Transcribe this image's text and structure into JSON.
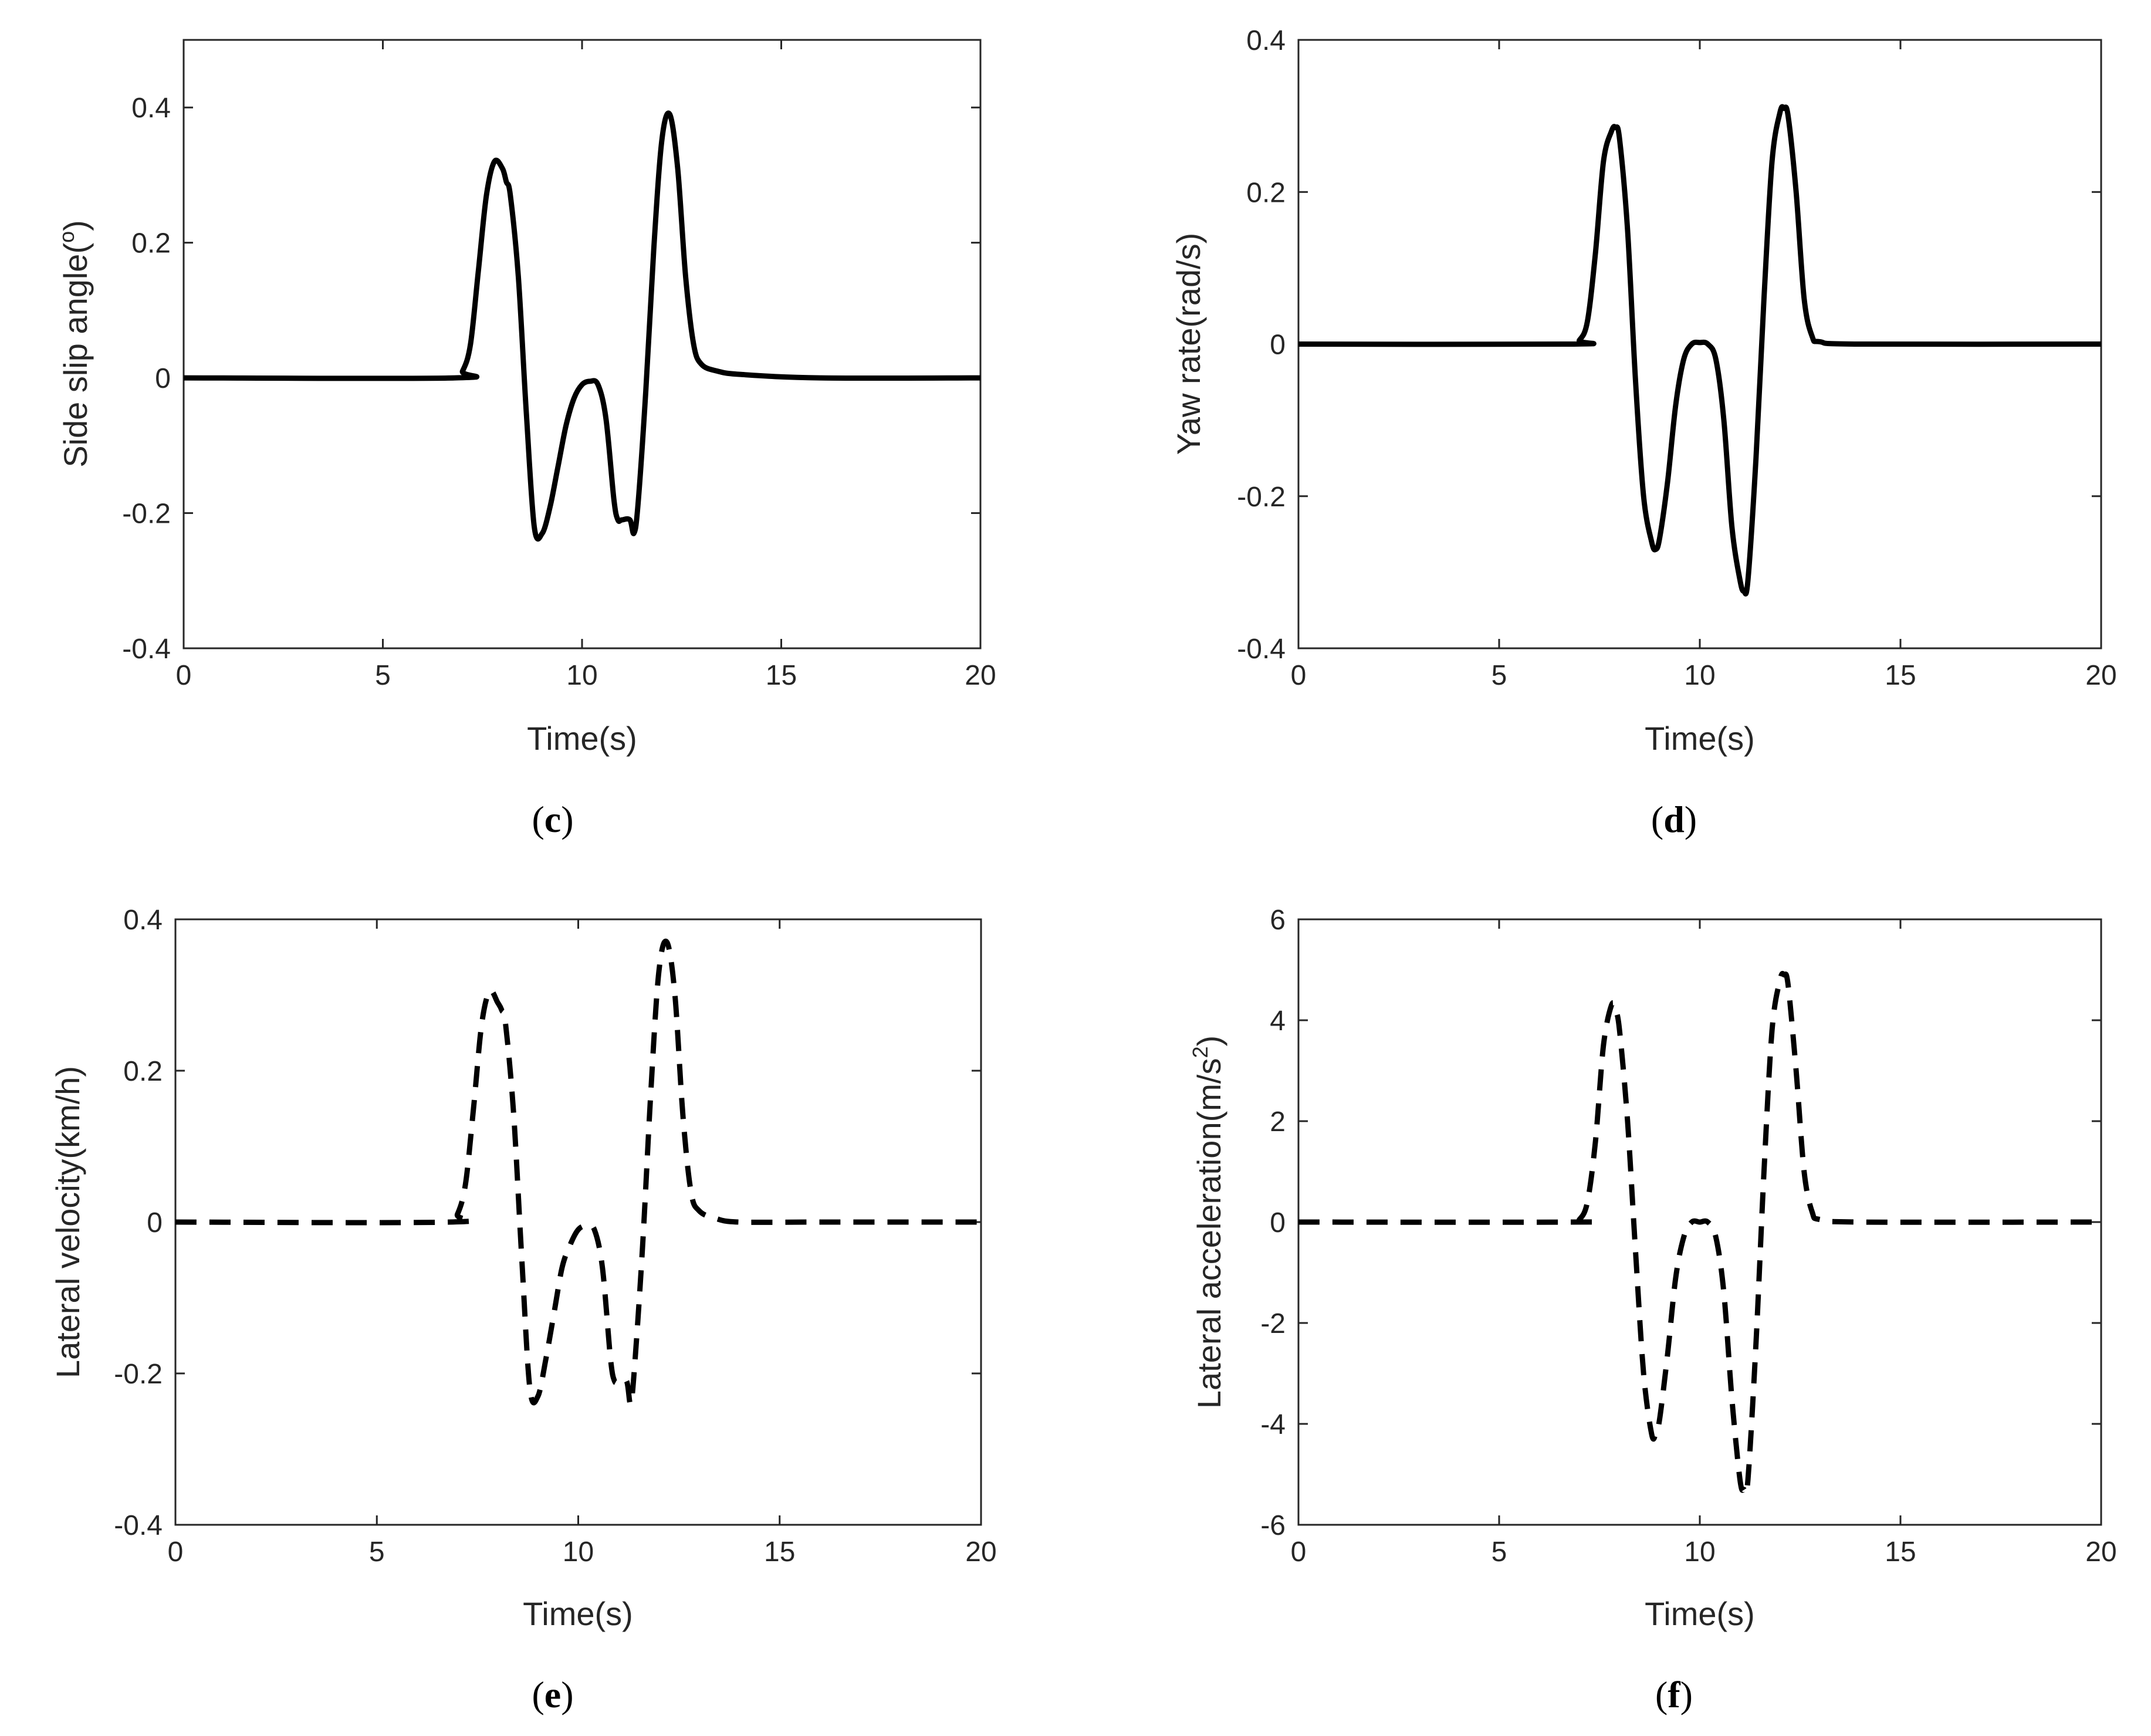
{
  "chart_data": [
    {
      "id": "c",
      "type": "line",
      "panel_label": "c",
      "xlabel": "Time(s)",
      "ylabel": "Side slip angle(",
      "ylabel_sup": "o",
      "ylabel_tail": ")",
      "xlim": [
        0,
        20
      ],
      "ylim": [
        -0.4,
        0.5
      ],
      "xticks": [
        0,
        5,
        10,
        15,
        20
      ],
      "xtick_labels": [
        "0",
        "5",
        "10",
        "15",
        "20"
      ],
      "yticks": [
        -0.4,
        -0.2,
        0,
        0.2,
        0.4
      ],
      "ytick_labels": [
        "-0.4",
        "-0.2",
        "0",
        "0.2",
        "0.4"
      ],
      "line_style": "solid",
      "series": [
        {
          "x": [
            0,
            6.8,
            7.0,
            7.2,
            7.4,
            7.6,
            7.8,
            8.0,
            8.1,
            8.2,
            8.4,
            8.6,
            8.8,
            9.0,
            9.2,
            9.4,
            9.6,
            9.8,
            10.0,
            10.2,
            10.4,
            10.6,
            10.8,
            10.9,
            11.0,
            11.2,
            11.3,
            11.4,
            11.6,
            11.8,
            12.0,
            12.2,
            12.4,
            12.6,
            12.8,
            13.0,
            13.4,
            14.0,
            16.0,
            20.0
          ],
          "y": [
            0,
            0,
            0.01,
            0.05,
            0.16,
            0.27,
            0.32,
            0.31,
            0.29,
            0.27,
            0.15,
            -0.05,
            -0.22,
            -0.23,
            -0.19,
            -0.13,
            -0.07,
            -0.03,
            -0.01,
            -0.005,
            -0.01,
            -0.06,
            -0.18,
            -0.21,
            -0.21,
            -0.21,
            -0.23,
            -0.19,
            -0.02,
            0.19,
            0.35,
            0.39,
            0.31,
            0.15,
            0.05,
            0.02,
            0.01,
            0.005,
            0,
            0
          ]
        }
      ]
    },
    {
      "id": "d",
      "type": "line",
      "panel_label": "d",
      "xlabel": "Time(s)",
      "ylabel": "Yaw rate(rad/s)",
      "ylabel_sup": "",
      "ylabel_tail": "",
      "xlim": [
        0,
        20
      ],
      "ylim": [
        -0.4,
        0.4
      ],
      "xticks": [
        0,
        5,
        10,
        15,
        20
      ],
      "xtick_labels": [
        "0",
        "5",
        "10",
        "15",
        "20"
      ],
      "yticks": [
        -0.4,
        -0.2,
        0,
        0.2,
        0.4
      ],
      "ytick_labels": [
        "-0.4",
        "-0.2",
        "0",
        "0.2",
        "0.4"
      ],
      "line_style": "solid",
      "series": [
        {
          "x": [
            0,
            6.8,
            7.0,
            7.2,
            7.4,
            7.6,
            7.8,
            7.9,
            8.0,
            8.2,
            8.4,
            8.6,
            8.8,
            8.9,
            9.0,
            9.2,
            9.4,
            9.6,
            9.8,
            10.0,
            10.2,
            10.4,
            10.6,
            10.8,
            11.0,
            11.1,
            11.2,
            11.4,
            11.6,
            11.8,
            12.0,
            12.1,
            12.2,
            12.4,
            12.6,
            12.8,
            13.0,
            14.0,
            20.0
          ],
          "y": [
            0,
            0,
            0.005,
            0.03,
            0.12,
            0.24,
            0.28,
            0.285,
            0.27,
            0.15,
            -0.05,
            -0.2,
            -0.26,
            -0.27,
            -0.255,
            -0.18,
            -0.08,
            -0.02,
            0.0,
            0.002,
            0.0,
            -0.02,
            -0.1,
            -0.24,
            -0.31,
            -0.325,
            -0.31,
            -0.15,
            0.06,
            0.24,
            0.305,
            0.31,
            0.3,
            0.2,
            0.06,
            0.01,
            0.003,
            0,
            0
          ]
        }
      ]
    },
    {
      "id": "e",
      "type": "line",
      "panel_label": "e",
      "xlabel": "Time(s)",
      "ylabel": "Lateral velocity(km/h)",
      "ylabel_sup": "",
      "ylabel_tail": "",
      "xlim": [
        0,
        20
      ],
      "ylim": [
        -0.4,
        0.4
      ],
      "xticks": [
        0,
        5,
        10,
        15,
        20
      ],
      "xtick_labels": [
        "0",
        "5",
        "10",
        "15",
        "20"
      ],
      "yticks": [
        -0.4,
        -0.2,
        0,
        0.2,
        0.4
      ],
      "ytick_labels": [
        "-0.4",
        "-0.2",
        "0",
        "0.2",
        "0.4"
      ],
      "line_style": "dashed",
      "series": [
        {
          "x": [
            0,
            6.8,
            7.0,
            7.2,
            7.4,
            7.6,
            7.8,
            8.0,
            8.1,
            8.2,
            8.4,
            8.6,
            8.8,
            9.0,
            9.2,
            9.4,
            9.6,
            9.8,
            10.0,
            10.2,
            10.4,
            10.6,
            10.8,
            10.9,
            11.0,
            11.2,
            11.3,
            11.4,
            11.6,
            11.8,
            12.0,
            12.2,
            12.4,
            12.6,
            12.8,
            13.0,
            13.4,
            14.0,
            16.0,
            20.0
          ],
          "y": [
            0,
            0,
            0.01,
            0.05,
            0.15,
            0.26,
            0.305,
            0.29,
            0.28,
            0.26,
            0.14,
            -0.05,
            -0.22,
            -0.23,
            -0.18,
            -0.12,
            -0.06,
            -0.03,
            -0.01,
            -0.005,
            -0.01,
            -0.06,
            -0.18,
            -0.21,
            -0.21,
            -0.21,
            -0.24,
            -0.19,
            -0.03,
            0.17,
            0.33,
            0.37,
            0.3,
            0.14,
            0.04,
            0.015,
            0.005,
            0,
            0,
            0
          ]
        }
      ]
    },
    {
      "id": "f",
      "type": "line",
      "panel_label": "f",
      "xlabel": "Time(s)",
      "ylabel": "Lateral acceleration(m/s",
      "ylabel_sup": "2",
      "ylabel_tail": ")",
      "xlim": [
        0,
        20
      ],
      "ylim": [
        -6,
        6
      ],
      "xticks": [
        0,
        5,
        10,
        15,
        20
      ],
      "xtick_labels": [
        "0",
        "5",
        "10",
        "15",
        "20"
      ],
      "yticks": [
        -6,
        -4,
        -2,
        0,
        2,
        4,
        6
      ],
      "ytick_labels": [
        "-6",
        "-4",
        "-2",
        "0",
        "2",
        "4",
        "6"
      ],
      "line_style": "dashed",
      "series": [
        {
          "x": [
            0,
            6.8,
            7.0,
            7.2,
            7.4,
            7.6,
            7.8,
            7.9,
            8.0,
            8.2,
            8.4,
            8.6,
            8.8,
            8.9,
            9.0,
            9.2,
            9.4,
            9.6,
            9.8,
            10.0,
            10.2,
            10.4,
            10.6,
            10.8,
            11.0,
            11.1,
            11.2,
            11.4,
            11.6,
            11.8,
            12.0,
            12.1,
            12.2,
            12.4,
            12.6,
            12.8,
            13.0,
            14.0,
            20.0
          ],
          "y": [
            0,
            0,
            0.05,
            0.4,
            1.6,
            3.5,
            4.3,
            4.2,
            3.8,
            2.0,
            -0.6,
            -3.0,
            -4.2,
            -4.2,
            -3.9,
            -2.6,
            -1.1,
            -0.3,
            0.0,
            0.0,
            0.0,
            -0.3,
            -1.4,
            -3.5,
            -5.1,
            -5.3,
            -5.1,
            -2.4,
            1.0,
            3.8,
            4.8,
            4.9,
            4.7,
            3.0,
            1.0,
            0.2,
            0.05,
            0,
            0
          ]
        }
      ]
    }
  ]
}
